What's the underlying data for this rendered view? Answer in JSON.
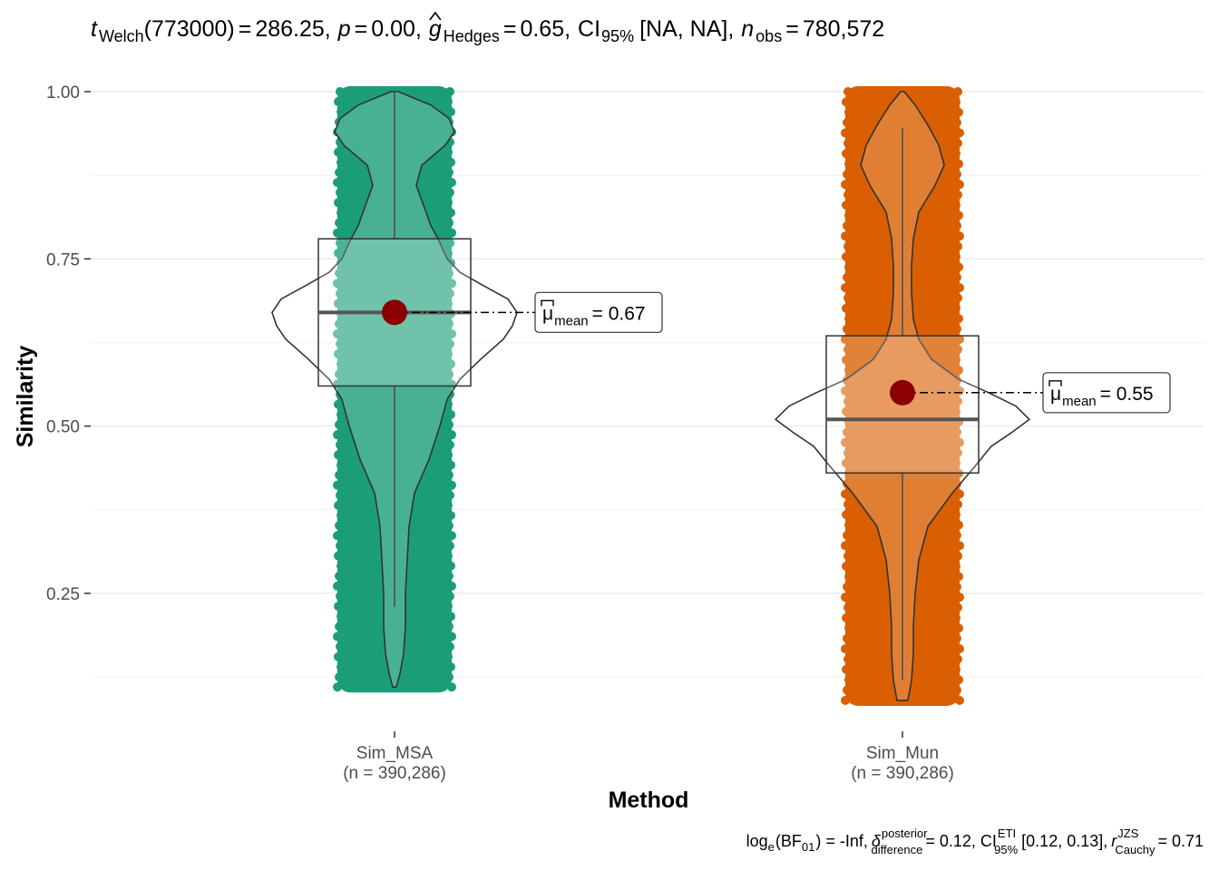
{
  "chart_data": {
    "type": "violin-box-scatter",
    "title_parts": {
      "t": "t",
      "t_sub": "Welch",
      "df": "(773000)",
      "eq": "=",
      "t_value": "286.25,",
      "p": "p",
      "p_value": "0.00,",
      "g": "g",
      "g_sub": "Hedges",
      "g_value": "0.65,",
      "ci": "CI",
      "ci_sub": "95%",
      "ci_value": "[NA, NA],",
      "n": "n",
      "n_sub": "obs",
      "n_value": "780,572"
    },
    "caption_parts": {
      "log": "log",
      "log_sub": "e",
      "bf": "(BF",
      "bf_sub": "01",
      "bf_value": ") = -Inf,",
      "delta": "δ",
      "delta_sup": "posterior",
      "delta_sub": "difference",
      "delta_value": "= 0.12, CI",
      "ci_sup": "ETI",
      "ci_sub": "95%",
      "ci_value": "[0.12, 0.13],",
      "r": "r",
      "r_sup": "JZS",
      "r_sub": "Cauchy",
      "r_value": "= 0.71"
    },
    "xlabel": "Method",
    "ylabel": "Similarity",
    "yticks": [
      "0.25",
      "0.50",
      "0.75",
      "1.00"
    ],
    "ylim": [
      0.065,
      1.05
    ],
    "grid": true,
    "groups": [
      {
        "name": "Sim_MSA",
        "n_label": "(n = 390,286)",
        "color": "#1b9e77",
        "range": [
          0.11,
          1.0
        ],
        "box": {
          "q1": 0.56,
          "median": 0.67,
          "q3": 0.78,
          "whisker_low": 0.23,
          "whisker_high": 1.0
        },
        "mean": 0.67,
        "mean_label_mu": "μ",
        "mean_label_sub": "mean",
        "mean_label_value": "= 0.67",
        "violin": [
          [
            0.11,
            2
          ],
          [
            0.13,
            6
          ],
          [
            0.16,
            10
          ],
          [
            0.2,
            12
          ],
          [
            0.25,
            12
          ],
          [
            0.3,
            14
          ],
          [
            0.35,
            16
          ],
          [
            0.4,
            22
          ],
          [
            0.45,
            38
          ],
          [
            0.5,
            50
          ],
          [
            0.54,
            58
          ],
          [
            0.57,
            72
          ],
          [
            0.6,
            95
          ],
          [
            0.63,
            120
          ],
          [
            0.65,
            130
          ],
          [
            0.67,
            135
          ],
          [
            0.69,
            125
          ],
          [
            0.71,
            98
          ],
          [
            0.73,
            72
          ],
          [
            0.75,
            58
          ],
          [
            0.78,
            48
          ],
          [
            0.8,
            40
          ],
          [
            0.83,
            32
          ],
          [
            0.86,
            24
          ],
          [
            0.89,
            30
          ],
          [
            0.92,
            56
          ],
          [
            0.94,
            66
          ],
          [
            0.96,
            60
          ],
          [
            0.98,
            40
          ],
          [
            1.0,
            4
          ]
        ]
      },
      {
        "name": "Sim_Mun",
        "n_label": "(n = 390,286)",
        "color": "#d95f02",
        "range": [
          0.09,
          1.0
        ],
        "box": {
          "q1": 0.43,
          "median": 0.51,
          "q3": 0.635,
          "whisker_low": 0.12,
          "whisker_high": 0.945
        },
        "mean": 0.55,
        "mean_label_mu": "μ",
        "mean_label_sub": "mean",
        "mean_label_value": "= 0.55",
        "violin": [
          [
            0.09,
            6
          ],
          [
            0.12,
            10
          ],
          [
            0.16,
            12
          ],
          [
            0.2,
            12
          ],
          [
            0.25,
            14
          ],
          [
            0.3,
            18
          ],
          [
            0.35,
            28
          ],
          [
            0.4,
            55
          ],
          [
            0.44,
            80
          ],
          [
            0.47,
            98
          ],
          [
            0.49,
            120
          ],
          [
            0.51,
            140
          ],
          [
            0.53,
            125
          ],
          [
            0.55,
            95
          ],
          [
            0.57,
            62
          ],
          [
            0.6,
            32
          ],
          [
            0.63,
            18
          ],
          [
            0.66,
            12
          ],
          [
            0.7,
            10
          ],
          [
            0.74,
            10
          ],
          [
            0.78,
            12
          ],
          [
            0.82,
            18
          ],
          [
            0.86,
            36
          ],
          [
            0.89,
            46
          ],
          [
            0.92,
            40
          ],
          [
            0.95,
            28
          ],
          [
            0.98,
            14
          ],
          [
            1.0,
            2
          ]
        ]
      }
    ]
  }
}
